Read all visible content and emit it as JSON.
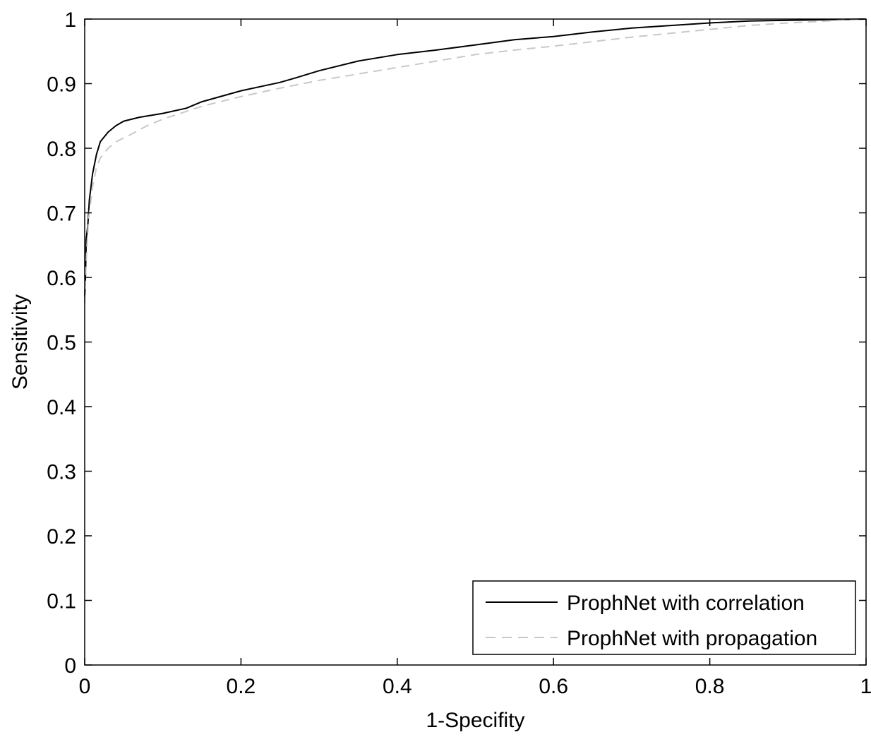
{
  "chart_data": {
    "type": "line",
    "title": "",
    "xlabel": "1-Specifity",
    "ylabel": "Sensitivity",
    "xlim": [
      0,
      1
    ],
    "ylim": [
      0,
      1
    ],
    "xticks": [
      0,
      0.2,
      0.4,
      0.6,
      0.8,
      1
    ],
    "xtick_labels": [
      "0",
      "0.2",
      "0.4",
      "0.6",
      "0.8",
      "1"
    ],
    "yticks": [
      0,
      0.1,
      0.2,
      0.3,
      0.4,
      0.5,
      0.6,
      0.7,
      0.8,
      0.9,
      1
    ],
    "ytick_labels": [
      "0",
      "0.1",
      "0.2",
      "0.3",
      "0.4",
      "0.5",
      "0.6",
      "0.7",
      "0.8",
      "0.9",
      "1"
    ],
    "grid": false,
    "legend_position": "bottom-right",
    "series": [
      {
        "name": "ProphNet with correlation",
        "color": "#000000",
        "dash": "solid",
        "x": [
          0,
          0.001,
          0.002,
          0.004,
          0.006,
          0.01,
          0.015,
          0.02,
          0.03,
          0.04,
          0.05,
          0.07,
          0.1,
          0.13,
          0.15,
          0.2,
          0.25,
          0.27,
          0.3,
          0.35,
          0.4,
          0.45,
          0.5,
          0.55,
          0.6,
          0.65,
          0.7,
          0.75,
          0.8,
          0.85,
          0.9,
          0.95,
          1.0
        ],
        "y": [
          0.57,
          0.6,
          0.66,
          0.68,
          0.72,
          0.76,
          0.79,
          0.81,
          0.825,
          0.835,
          0.842,
          0.848,
          0.854,
          0.862,
          0.872,
          0.889,
          0.902,
          0.909,
          0.92,
          0.935,
          0.945,
          0.952,
          0.96,
          0.968,
          0.973,
          0.98,
          0.986,
          0.99,
          0.994,
          0.997,
          0.998,
          0.999,
          1.0
        ]
      },
      {
        "name": "ProphNet with propagation",
        "color": "#c8c8c8",
        "dash": "dashed",
        "x": [
          0,
          0.001,
          0.003,
          0.005,
          0.01,
          0.015,
          0.02,
          0.03,
          0.04,
          0.06,
          0.08,
          0.1,
          0.15,
          0.2,
          0.25,
          0.3,
          0.35,
          0.4,
          0.45,
          0.5,
          0.55,
          0.6,
          0.65,
          0.7,
          0.75,
          0.8,
          0.85,
          0.9,
          0.95,
          1.0
        ],
        "y": [
          0.56,
          0.6,
          0.65,
          0.69,
          0.74,
          0.77,
          0.785,
          0.8,
          0.81,
          0.822,
          0.835,
          0.845,
          0.865,
          0.88,
          0.893,
          0.905,
          0.915,
          0.925,
          0.935,
          0.945,
          0.952,
          0.958,
          0.965,
          0.972,
          0.978,
          0.984,
          0.99,
          0.994,
          0.997,
          1.0
        ]
      }
    ]
  }
}
